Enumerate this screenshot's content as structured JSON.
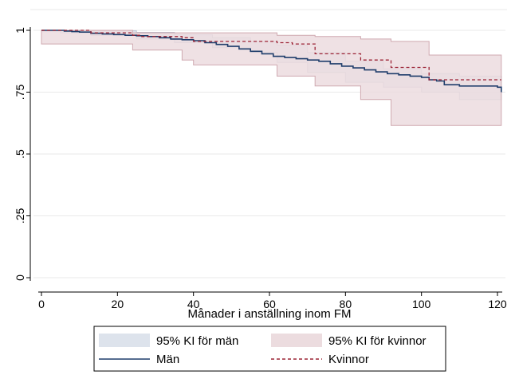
{
  "chart_data": {
    "type": "line",
    "title": "",
    "xlabel": "Månader i anställning inom FM",
    "ylabel": "",
    "xlim": [
      0,
      122
    ],
    "ylim": [
      0,
      1
    ],
    "x_ticks": [
      0,
      20,
      40,
      60,
      80,
      100,
      120
    ],
    "x_tick_labels": [
      "0",
      "20",
      "40",
      "60",
      "80",
      "100",
      "120"
    ],
    "y_ticks": [
      0,
      0.25,
      0.5,
      0.75,
      1
    ],
    "y_tick_labels": [
      "0",
      ".25",
      ".5",
      ".75",
      "1"
    ],
    "grid": true,
    "legend_position": "bottom",
    "series": [
      {
        "name": "95% KI för män",
        "kind": "band",
        "color": "#dde3ec",
        "x": [
          0,
          5,
          13,
          25,
          35,
          45,
          55,
          62,
          70,
          80,
          90,
          100,
          110,
          121
        ],
        "lower": [
          1.0,
          0.995,
          0.99,
          0.98,
          0.965,
          0.95,
          0.93,
          0.91,
          0.87,
          0.83,
          0.79,
          0.77,
          0.75,
          0.72
        ],
        "upper": [
          1.0,
          1.0,
          0.998,
          0.992,
          0.982,
          0.97,
          0.955,
          0.94,
          0.91,
          0.875,
          0.845,
          0.825,
          0.815,
          0.79
        ]
      },
      {
        "name": "95% KI för kvinnor",
        "kind": "band",
        "color": "#ecdcdf",
        "x": [
          0,
          13,
          24,
          26,
          37,
          40,
          62,
          72,
          84,
          92,
          102,
          121
        ],
        "lower": [
          1.0,
          0.945,
          0.945,
          0.92,
          0.92,
          0.88,
          0.86,
          0.815,
          0.775,
          0.72,
          0.615,
          0.615
        ],
        "upper": [
          1.0,
          1.0,
          0.99,
          0.99,
          0.99,
          0.99,
          0.98,
          0.975,
          0.965,
          0.955,
          0.9,
          0.9
        ]
      },
      {
        "name": "Män",
        "kind": "line",
        "color": "#1f3d6b",
        "dash": "",
        "x": [
          0,
          3,
          6,
          8,
          10,
          13,
          16,
          19,
          22,
          25,
          28,
          31,
          34,
          37,
          40,
          43,
          46,
          49,
          52,
          55,
          58,
          61,
          64,
          67,
          70,
          73,
          76,
          79,
          82,
          85,
          88,
          91,
          94,
          97,
          100,
          102,
          104,
          106,
          110,
          115,
          120,
          121
        ],
        "y": [
          1.0,
          1.0,
          0.997,
          0.995,
          0.993,
          0.988,
          0.985,
          0.983,
          0.98,
          0.978,
          0.975,
          0.97,
          0.965,
          0.962,
          0.958,
          0.95,
          0.943,
          0.935,
          0.925,
          0.915,
          0.905,
          0.895,
          0.89,
          0.885,
          0.88,
          0.875,
          0.865,
          0.855,
          0.848,
          0.84,
          0.832,
          0.825,
          0.82,
          0.815,
          0.81,
          0.8,
          0.795,
          0.78,
          0.775,
          0.775,
          0.77,
          0.75
        ]
      },
      {
        "name": "Kvinnor",
        "kind": "line",
        "color": "#9b2335",
        "dash": "4,3",
        "x": [
          0,
          13,
          24,
          26,
          37,
          40,
          62,
          66,
          72,
          84,
          92,
          102,
          121
        ],
        "y": [
          1.0,
          0.99,
          0.98,
          0.975,
          0.97,
          0.955,
          0.95,
          0.945,
          0.905,
          0.88,
          0.85,
          0.8,
          0.8
        ]
      }
    ],
    "legend": {
      "entries": [
        {
          "label": "95% KI för män",
          "swatch": "band",
          "color": "#dde3ec"
        },
        {
          "label": "95% KI för kvinnor",
          "swatch": "band",
          "color": "#ecdcdf"
        },
        {
          "label": "Män",
          "swatch": "line",
          "color": "#1f3d6b",
          "dash": ""
        },
        {
          "label": "Kvinnor",
          "swatch": "line",
          "color": "#9b2335",
          "dash": "4,3"
        }
      ]
    }
  }
}
